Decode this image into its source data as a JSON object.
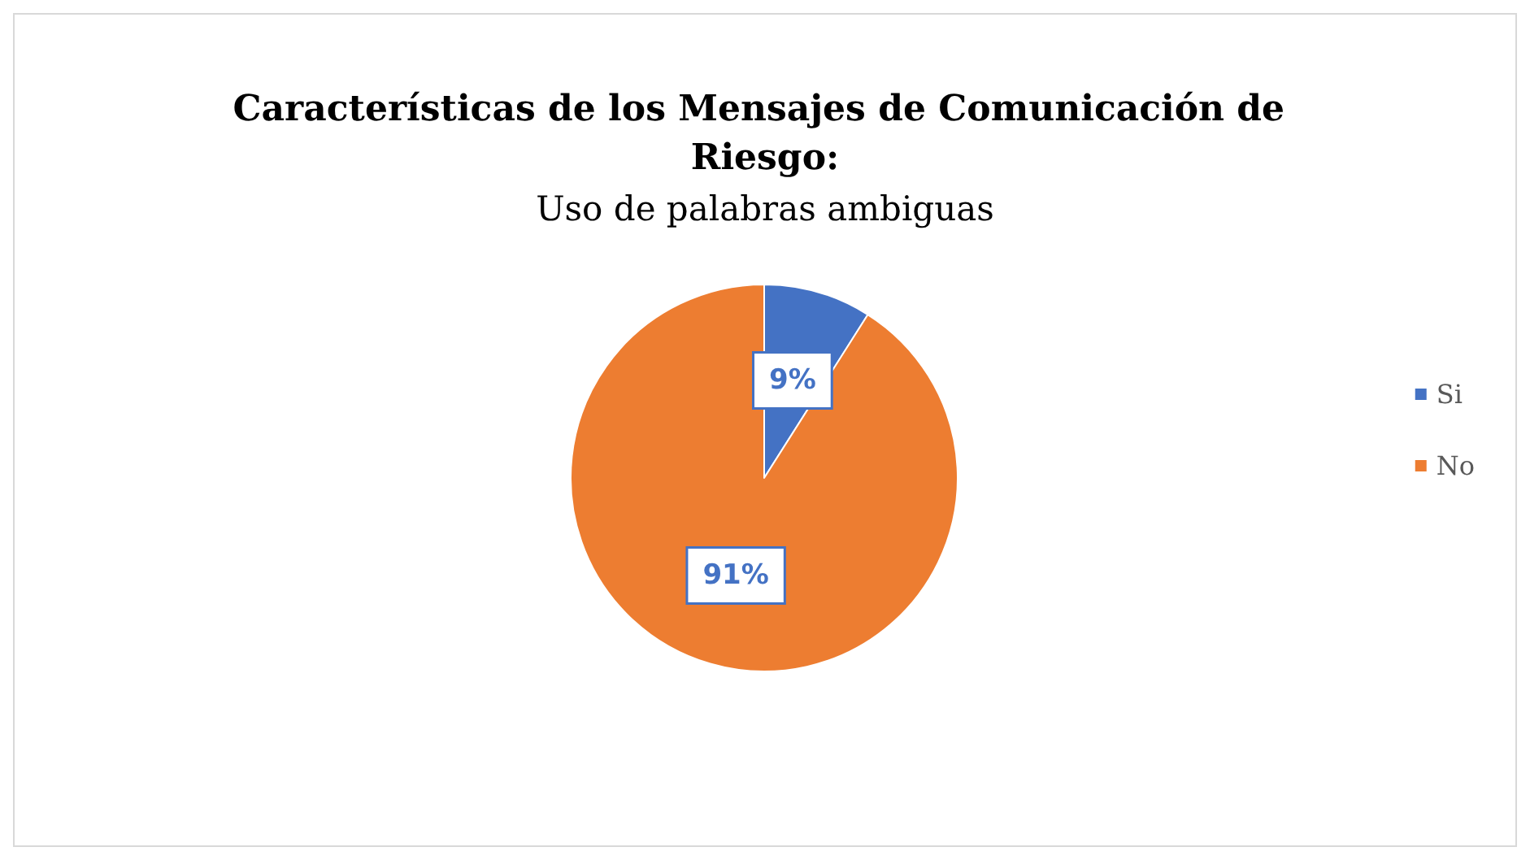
{
  "chart_data": {
    "type": "pie",
    "title": "Características de los Mensajes de Comunicación de Riesgo:",
    "subtitle": "Uso de palabras ambiguas",
    "categories": [
      "Si",
      "No"
    ],
    "values": [
      9,
      91
    ],
    "value_labels": [
      "9%",
      "91%"
    ],
    "colors": [
      "#4472c4",
      "#ed7d31"
    ],
    "legend": "right"
  }
}
